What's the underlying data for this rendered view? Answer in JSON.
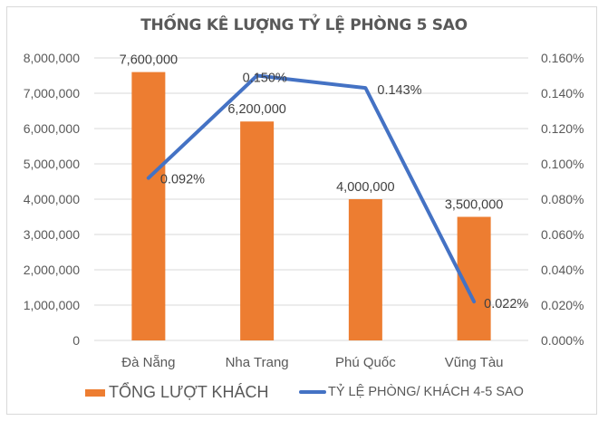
{
  "chart_data": {
    "type": "bar+line (combo, dual axis)",
    "title": "THỐNG KÊ LƯỢNG TỶ LỆ PHÒNG 5 SAO",
    "categories": [
      "Đà Nẵng",
      "Nha Trang",
      "Phú Quốc",
      "Vũng Tàu"
    ],
    "series": [
      {
        "name": "TỔNG LƯỢT KHÁCH",
        "type": "bar",
        "axis": "left",
        "color": "#ed7d31",
        "values": [
          7600000,
          6200000,
          4000000,
          3500000
        ],
        "labels": [
          "7,600,000",
          "6,200,000",
          "4,000,000",
          "3,500,000"
        ]
      },
      {
        "name": "TỶ LỆ PHÒNG/ KHÁCH 4-5 SAO",
        "type": "line",
        "axis": "right",
        "color": "#4472c4",
        "values": [
          0.092,
          0.15,
          0.143,
          0.022
        ],
        "labels": [
          "0.092%",
          "0.150%",
          "0.143%",
          "0.022%"
        ]
      }
    ],
    "y_left": {
      "ylim": [
        0,
        8000000
      ],
      "ticks": [
        "0",
        "1,000,000",
        "2,000,000",
        "3,000,000",
        "4,000,000",
        "5,000,000",
        "6,000,000",
        "7,000,000",
        "8,000,000"
      ]
    },
    "y_right": {
      "ylim": [
        0,
        0.16
      ],
      "unit": "%",
      "ticks": [
        "0.000%",
        "0.020%",
        "0.040%",
        "0.060%",
        "0.080%",
        "0.100%",
        "0.120%",
        "0.140%",
        "0.160%"
      ]
    },
    "xlabel": "",
    "ylabel": "",
    "grid": true,
    "legend_position": "bottom"
  },
  "legend": {
    "bar_label": "TỔNG LƯỢT KHÁCH",
    "line_label": "TỶ LỆ PHÒNG/ KHÁCH 4-5 SAO"
  }
}
